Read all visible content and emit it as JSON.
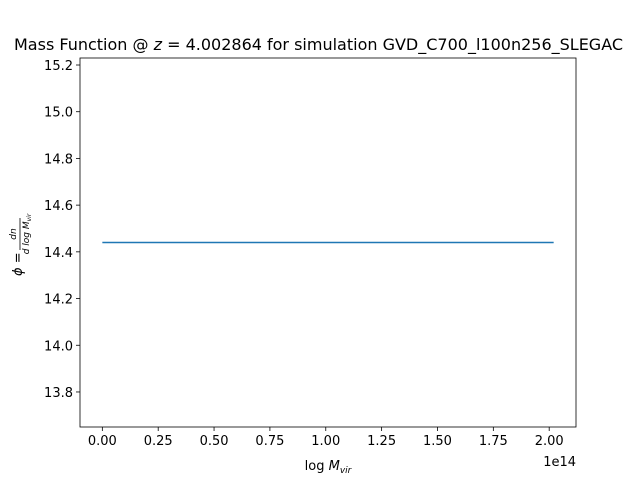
{
  "chart_data": {
    "type": "line",
    "title_prefix": "Mass Function @ ",
    "title_var": "z",
    "title_suffix": " = 4.002864 for simulation GVD_C700_l100n256_SLEGAC",
    "xlabel_prefix": "log ",
    "xlabel_var": "M",
    "xlabel_sub": "vir",
    "ylabel_prefix": "ϕ = ",
    "ylabel_num": "dn",
    "ylabel_den_prefix": "d log ",
    "ylabel_den_var": "M",
    "ylabel_den_sub": "vir",
    "x_offset_text": "1e14",
    "xlim": [
      -0.1,
      2.12
    ],
    "ylim": [
      13.65,
      15.23
    ],
    "x_ticks": [
      0.0,
      0.25,
      0.5,
      0.75,
      1.0,
      1.25,
      1.5,
      1.75,
      2.0
    ],
    "x_tick_labels": [
      "0.00",
      "0.25",
      "0.50",
      "0.75",
      "1.00",
      "1.25",
      "1.50",
      "1.75",
      "2.00"
    ],
    "y_ticks": [
      13.8,
      14.0,
      14.2,
      14.4,
      14.6,
      14.8,
      15.0,
      15.2
    ],
    "y_tick_labels": [
      "13.8",
      "14.0",
      "14.2",
      "14.4",
      "14.6",
      "14.8",
      "15.0",
      "15.2"
    ],
    "series": [
      {
        "color": "#1f77b4",
        "x": [
          0.0,
          2.02
        ],
        "y": [
          14.44,
          14.44
        ]
      }
    ],
    "grid": false,
    "legend": "none"
  }
}
